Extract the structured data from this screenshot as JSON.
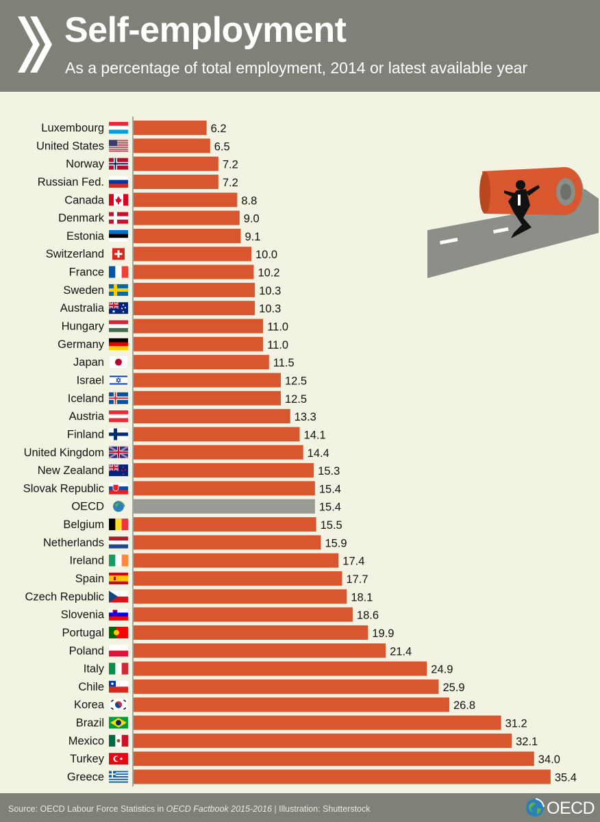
{
  "header": {
    "title": "Self-employment",
    "subtitle": "As a percentage of total employment, 2014 or latest available year"
  },
  "chart_data": {
    "type": "bar",
    "orientation": "horizontal",
    "title": "Self-employment",
    "subtitle": "As a percentage of total employment, 2014 or latest available year",
    "xlabel": "",
    "ylabel": "",
    "xlim": [
      0,
      36
    ],
    "bar_color": "#d9572f",
    "highlight_color": "#999c94",
    "highlight_category": "OECD",
    "categories": [
      "Luxembourg",
      "United States",
      "Norway",
      "Russian Fed.",
      "Canada",
      "Denmark",
      "Estonia",
      "Switzerland",
      "France",
      "Sweden",
      "Australia",
      "Hungary",
      "Germany",
      "Japan",
      "Israel",
      "Iceland",
      "Austria",
      "Finland",
      "United Kingdom",
      "New Zealand",
      "Slovak Republic",
      "OECD",
      "Belgium",
      "Netherlands",
      "Ireland",
      "Spain",
      "Czech Republic",
      "Slovenia",
      "Portugal",
      "Poland",
      "Italy",
      "Chile",
      "Korea",
      "Brazil",
      "Mexico",
      "Turkey",
      "Greece"
    ],
    "values": [
      6.2,
      6.5,
      7.2,
      7.2,
      8.8,
      9.0,
      9.1,
      10.0,
      10.2,
      10.3,
      10.3,
      11.0,
      11.0,
      11.5,
      12.5,
      12.5,
      13.3,
      14.1,
      14.4,
      15.3,
      15.4,
      15.4,
      15.5,
      15.9,
      17.4,
      17.7,
      18.1,
      18.6,
      19.9,
      21.4,
      24.9,
      25.9,
      26.8,
      31.2,
      32.1,
      34.0,
      35.4
    ],
    "value_labels": [
      "6.2",
      "6.5",
      "7.2",
      "7.2",
      "8.8",
      "9.0",
      "9.1",
      "10.0",
      "10.2",
      "10.3",
      "10.3",
      "11.0",
      "11.0",
      "11.5",
      "12.5",
      "12.5",
      "13.3",
      "14.1",
      "14.4",
      "15.3",
      "15.4",
      "15.4",
      "15.5",
      "15.9",
      "17.4",
      "17.7",
      "18.1",
      "18.6",
      "19.9",
      "21.4",
      "24.9",
      "25.9",
      "26.8",
      "31.2",
      "32.1",
      "34.0",
      "35.4"
    ],
    "flags": [
      "flag-luxembourg-icon",
      "flag-united-states-icon",
      "flag-norway-icon",
      "flag-russia-icon",
      "flag-canada-icon",
      "flag-denmark-icon",
      "flag-estonia-icon",
      "flag-switzerland-icon",
      "flag-france-icon",
      "flag-sweden-icon",
      "flag-australia-icon",
      "flag-hungary-icon",
      "flag-germany-icon",
      "flag-japan-icon",
      "flag-israel-icon",
      "flag-iceland-icon",
      "flag-austria-icon",
      "flag-finland-icon",
      "flag-united-kingdom-icon",
      "flag-new-zealand-icon",
      "flag-slovak-republic-icon",
      "oecd-globe-icon",
      "flag-belgium-icon",
      "flag-netherlands-icon",
      "flag-ireland-icon",
      "flag-spain-icon",
      "flag-czech-republic-icon",
      "flag-slovenia-icon",
      "flag-portugal-icon",
      "flag-poland-icon",
      "flag-italy-icon",
      "flag-chile-icon",
      "flag-korea-icon",
      "flag-brazil-icon",
      "flag-mexico-icon",
      "flag-turkey-icon",
      "flag-greece-icon"
    ]
  },
  "footer": {
    "source_prefix": "Source: OECD Labour Force Statistics in ",
    "source_italic": "OECD Factbook 2015-2016",
    "source_suffix": " | Illustration: Shutterstock",
    "logo_text": "OECD"
  },
  "illustration": {
    "icon": "man-pushing-road-roll-illustration"
  }
}
